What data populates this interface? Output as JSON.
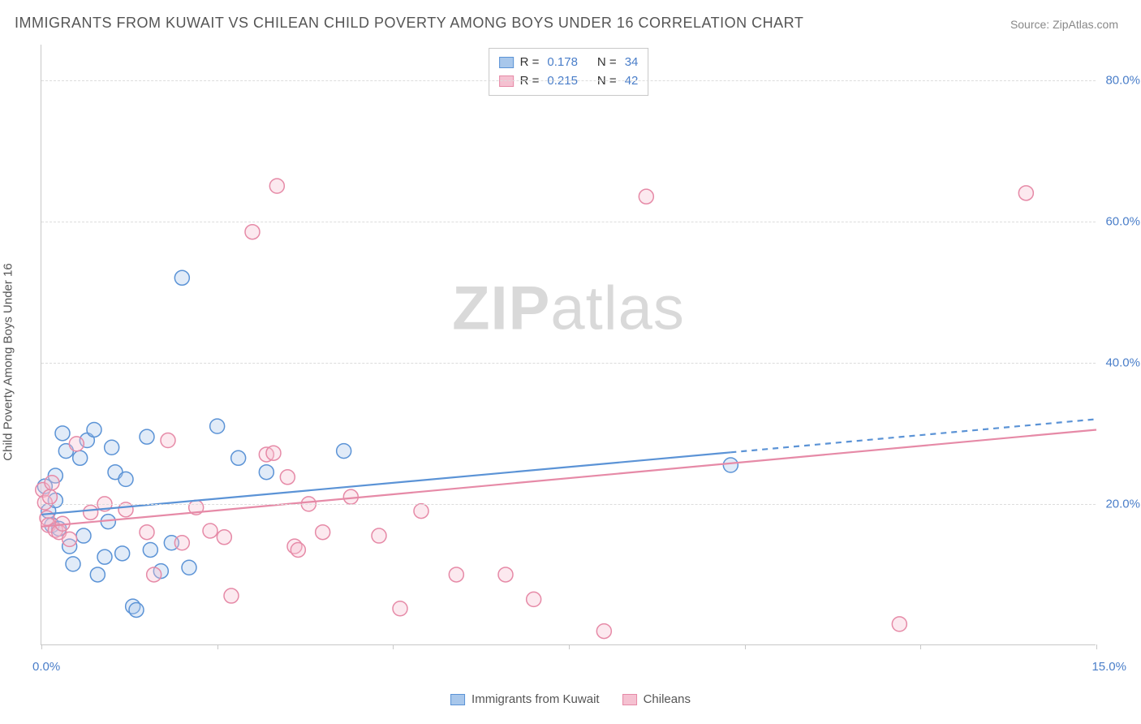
{
  "title": "IMMIGRANTS FROM KUWAIT VS CHILEAN CHILD POVERTY AMONG BOYS UNDER 16 CORRELATION CHART",
  "source_label": "Source:",
  "source_value": "ZipAtlas.com",
  "ylabel": "Child Poverty Among Boys Under 16",
  "watermark_bold": "ZIP",
  "watermark_rest": "atlas",
  "chart": {
    "type": "scatter",
    "xlim": [
      0,
      15
    ],
    "ylim": [
      0,
      85
    ],
    "ytick_values": [
      20,
      40,
      60,
      80
    ],
    "ytick_labels": [
      "20.0%",
      "40.0%",
      "60.0%",
      "80.0%"
    ],
    "xtick_values": [
      0,
      2.5,
      5,
      7.5,
      10,
      12.5,
      15
    ],
    "xtick_end_labels": {
      "left": "0.0%",
      "right": "15.0%"
    },
    "background_color": "#ffffff",
    "grid_color": "#dcdcdc",
    "axis_color": "#c8c8c8",
    "marker_radius": 9,
    "marker_stroke_width": 1.5,
    "marker_fill_opacity": 0.35,
    "line_width": 2.2,
    "series": [
      {
        "key": "kuwait",
        "label": "Immigrants from Kuwait",
        "color_stroke": "#5b93d6",
        "color_fill": "#a8c7eb",
        "R": "0.178",
        "N": "34",
        "points": [
          [
            0.05,
            22.5
          ],
          [
            0.1,
            19.0
          ],
          [
            0.15,
            17.0
          ],
          [
            0.2,
            20.5
          ],
          [
            0.2,
            24.0
          ],
          [
            0.25,
            16.5
          ],
          [
            0.3,
            30.0
          ],
          [
            0.35,
            27.5
          ],
          [
            0.4,
            14.0
          ],
          [
            0.45,
            11.5
          ],
          [
            0.55,
            26.5
          ],
          [
            0.6,
            15.5
          ],
          [
            0.65,
            29.0
          ],
          [
            0.75,
            30.5
          ],
          [
            0.8,
            10.0
          ],
          [
            0.9,
            12.5
          ],
          [
            0.95,
            17.5
          ],
          [
            1.0,
            28.0
          ],
          [
            1.05,
            24.5
          ],
          [
            1.15,
            13.0
          ],
          [
            1.2,
            23.5
          ],
          [
            1.3,
            5.5
          ],
          [
            1.35,
            5.0
          ],
          [
            1.5,
            29.5
          ],
          [
            1.55,
            13.5
          ],
          [
            1.7,
            10.5
          ],
          [
            1.85,
            14.5
          ],
          [
            2.0,
            52.0
          ],
          [
            2.1,
            11.0
          ],
          [
            2.5,
            31.0
          ],
          [
            2.8,
            26.5
          ],
          [
            3.2,
            24.5
          ],
          [
            4.3,
            27.5
          ],
          [
            9.8,
            25.5
          ]
        ],
        "trend": {
          "x1": 0,
          "y1": 18.5,
          "x2_solid": 9.8,
          "y2_solid": 27.3,
          "x2": 15,
          "y2": 32.0
        }
      },
      {
        "key": "chileans",
        "label": "Chileans",
        "color_stroke": "#e68aa7",
        "color_fill": "#f5c1d1",
        "R": "0.215",
        "N": "42",
        "points": [
          [
            0.02,
            22.0
          ],
          [
            0.05,
            20.2
          ],
          [
            0.08,
            18.0
          ],
          [
            0.1,
            17.0
          ],
          [
            0.12,
            21.0
          ],
          [
            0.15,
            23.0
          ],
          [
            0.2,
            16.3
          ],
          [
            0.25,
            16.0
          ],
          [
            0.3,
            17.2
          ],
          [
            0.4,
            15.0
          ],
          [
            0.5,
            28.5
          ],
          [
            0.7,
            18.8
          ],
          [
            0.9,
            20.0
          ],
          [
            1.2,
            19.2
          ],
          [
            1.5,
            16.0
          ],
          [
            1.6,
            10.0
          ],
          [
            1.8,
            29.0
          ],
          [
            2.0,
            14.5
          ],
          [
            2.2,
            19.5
          ],
          [
            2.4,
            16.2
          ],
          [
            2.6,
            15.3
          ],
          [
            2.7,
            7.0
          ],
          [
            3.0,
            58.5
          ],
          [
            3.2,
            27.0
          ],
          [
            3.3,
            27.2
          ],
          [
            3.35,
            65.0
          ],
          [
            3.5,
            23.8
          ],
          [
            3.6,
            14.0
          ],
          [
            3.65,
            13.5
          ],
          [
            3.8,
            20.0
          ],
          [
            4.0,
            16.0
          ],
          [
            4.4,
            21.0
          ],
          [
            4.8,
            15.5
          ],
          [
            5.1,
            5.2
          ],
          [
            5.4,
            19.0
          ],
          [
            5.9,
            10.0
          ],
          [
            6.6,
            10.0
          ],
          [
            7.0,
            6.5
          ],
          [
            8.0,
            2.0
          ],
          [
            8.6,
            63.5
          ],
          [
            12.2,
            3.0
          ],
          [
            14.0,
            64.0
          ]
        ],
        "trend": {
          "x1": 0,
          "y1": 16.8,
          "x2_solid": 15,
          "y2_solid": 30.5,
          "x2": 15,
          "y2": 30.5
        }
      }
    ]
  },
  "legend_top_r_label": "R =",
  "legend_top_n_label": "N ="
}
